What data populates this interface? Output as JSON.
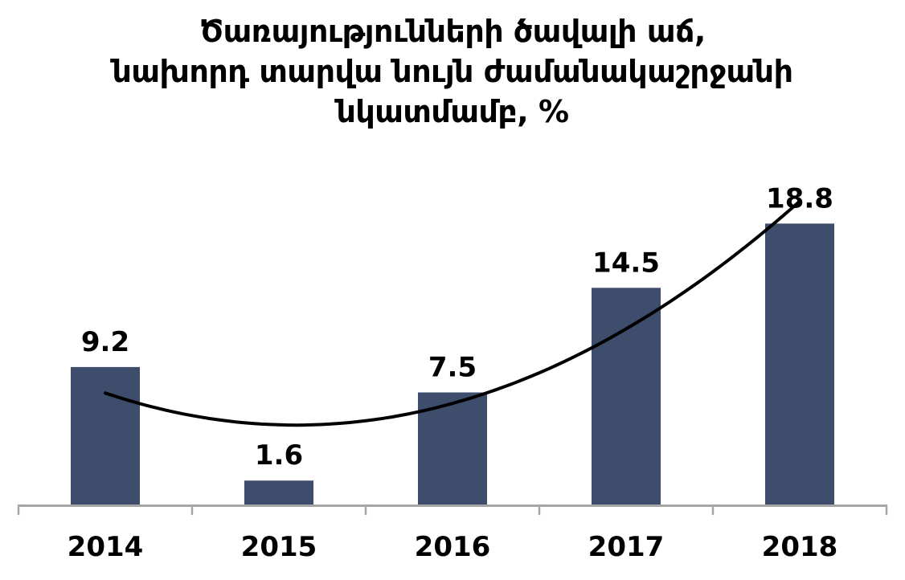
{
  "title": {
    "line1": "Ծառայությունների ծավալի աճ,",
    "line2": "նախորդ տարվա նույն ժամանակաշրջանի",
    "line3": "նկատմամբ, %"
  },
  "chart_data": {
    "type": "bar",
    "title": "Ծառայությունների ծավալի աճ, նախորդ տարվա նույն ժամանակաշրջանի նկատմամբ, %",
    "categories": [
      "2014",
      "2015",
      "2016",
      "2017",
      "2018"
    ],
    "values": [
      9.2,
      1.6,
      7.5,
      14.5,
      18.8
    ],
    "data_labels": [
      "9.2",
      "1.6",
      "7.5",
      "14.5",
      "18.8"
    ],
    "xlabel": "",
    "ylabel": "",
    "ylim": [
      0,
      22
    ],
    "grid": false,
    "legend": false,
    "y_axis_visible": false,
    "trendline": {
      "type": "polynomial",
      "order": 2,
      "color": "#000000"
    },
    "colors": {
      "bar": "#3E4D6B",
      "axis": "#A6A6A6",
      "labels": "#000000",
      "background": "#FFFFFF"
    }
  }
}
